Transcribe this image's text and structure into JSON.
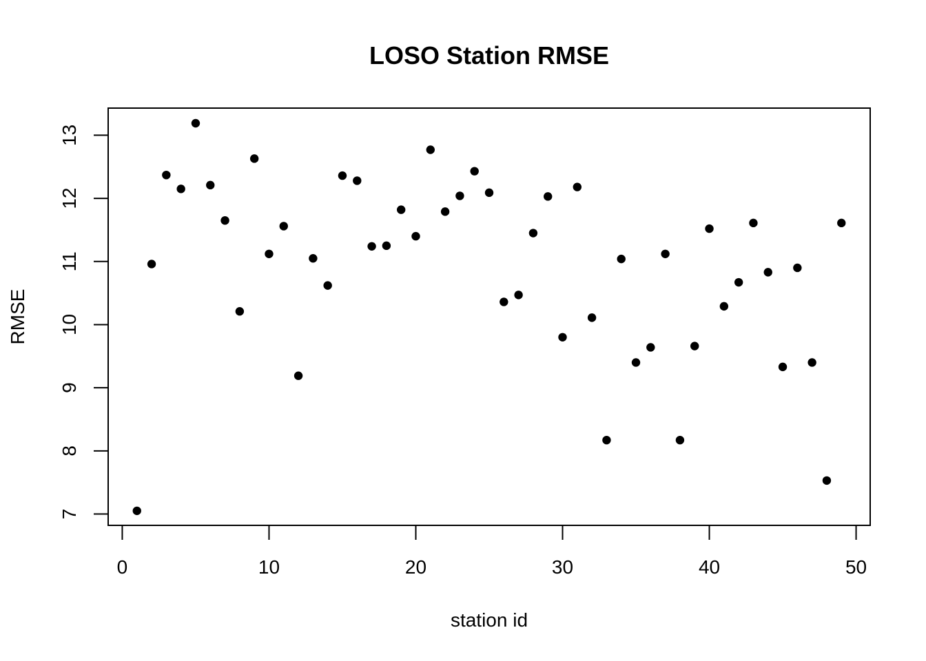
{
  "chart_data": {
    "type": "scatter",
    "title": "LOSO Station RMSE",
    "xlabel": "station id",
    "ylabel": "RMSE",
    "x_ticks": [
      0,
      10,
      20,
      30,
      40,
      50
    ],
    "y_ticks": [
      7,
      8,
      9,
      10,
      11,
      12,
      13
    ],
    "xlim": [
      -0.96,
      50.96
    ],
    "ylim": [
      6.82,
      13.43
    ],
    "grid": false,
    "legend": "none",
    "point_color": "#000000",
    "x": [
      1,
      2,
      3,
      4,
      5,
      6,
      7,
      8,
      9,
      10,
      11,
      12,
      13,
      14,
      15,
      16,
      17,
      18,
      19,
      20,
      21,
      22,
      23,
      24,
      25,
      26,
      27,
      28,
      29,
      30,
      31,
      32,
      33,
      34,
      35,
      36,
      37,
      38,
      39,
      40,
      41,
      42,
      43,
      44,
      45,
      46,
      47,
      48,
      49
    ],
    "y": [
      7.05,
      10.96,
      12.37,
      12.15,
      13.19,
      12.21,
      11.65,
      10.21,
      12.63,
      11.12,
      11.56,
      9.19,
      11.05,
      10.62,
      12.36,
      12.28,
      11.24,
      11.25,
      11.82,
      11.4,
      12.77,
      11.79,
      12.04,
      12.43,
      12.09,
      10.36,
      10.47,
      11.45,
      12.03,
      9.8,
      12.18,
      10.11,
      8.17,
      11.04,
      9.4,
      9.64,
      11.12,
      8.17,
      9.66,
      11.52,
      10.29,
      10.67,
      11.61,
      10.83,
      9.33,
      10.9,
      9.4,
      7.53,
      11.61
    ]
  }
}
